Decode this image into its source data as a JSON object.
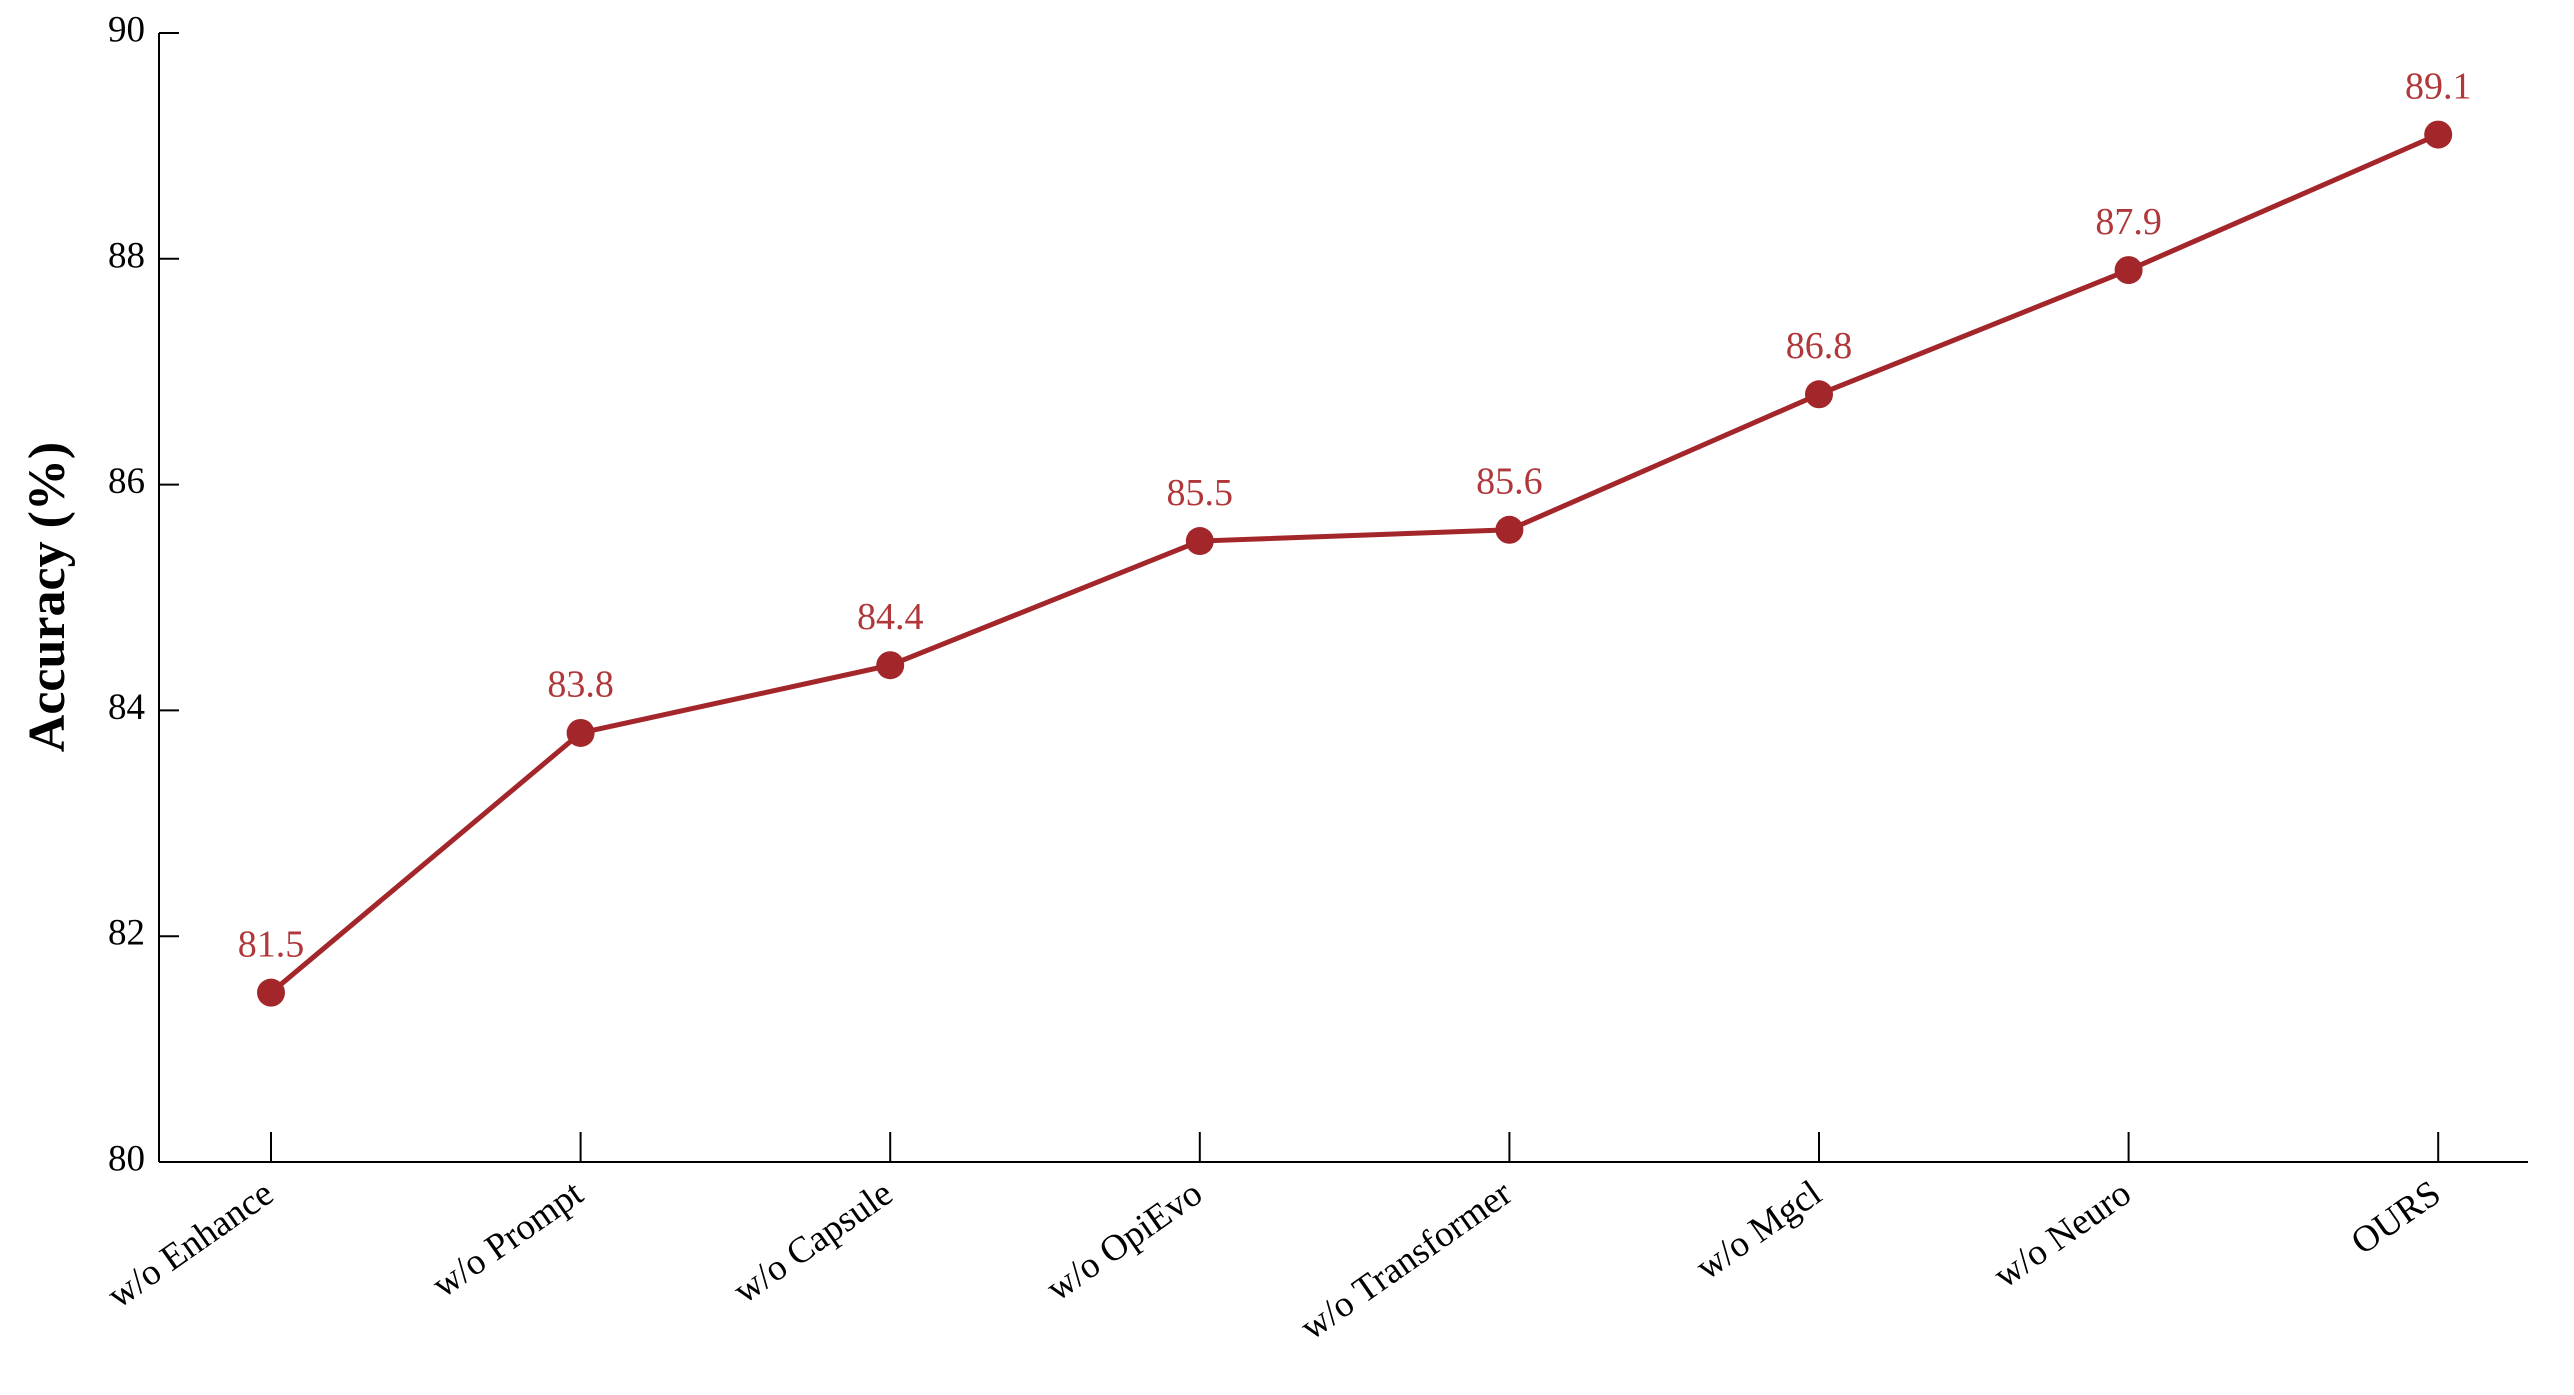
{
  "chart_data": {
    "type": "line",
    "y_label": "Accuracy (%)",
    "categories": [
      "w/o Enhance",
      "w/o Prompt",
      "w/o Capsule",
      "w/o OpiEvo",
      "w/o Transformer",
      "w/o Mgcl",
      "w/o Neuro",
      "OURS"
    ],
    "values": [
      81.5,
      83.8,
      84.4,
      85.5,
      85.6,
      86.8,
      87.9,
      89.1
    ],
    "color": "#a3262a",
    "label_color": "#b0383a",
    "ylim": [
      80,
      90
    ],
    "yticks": [
      80,
      82,
      84,
      86,
      88,
      90
    ]
  }
}
